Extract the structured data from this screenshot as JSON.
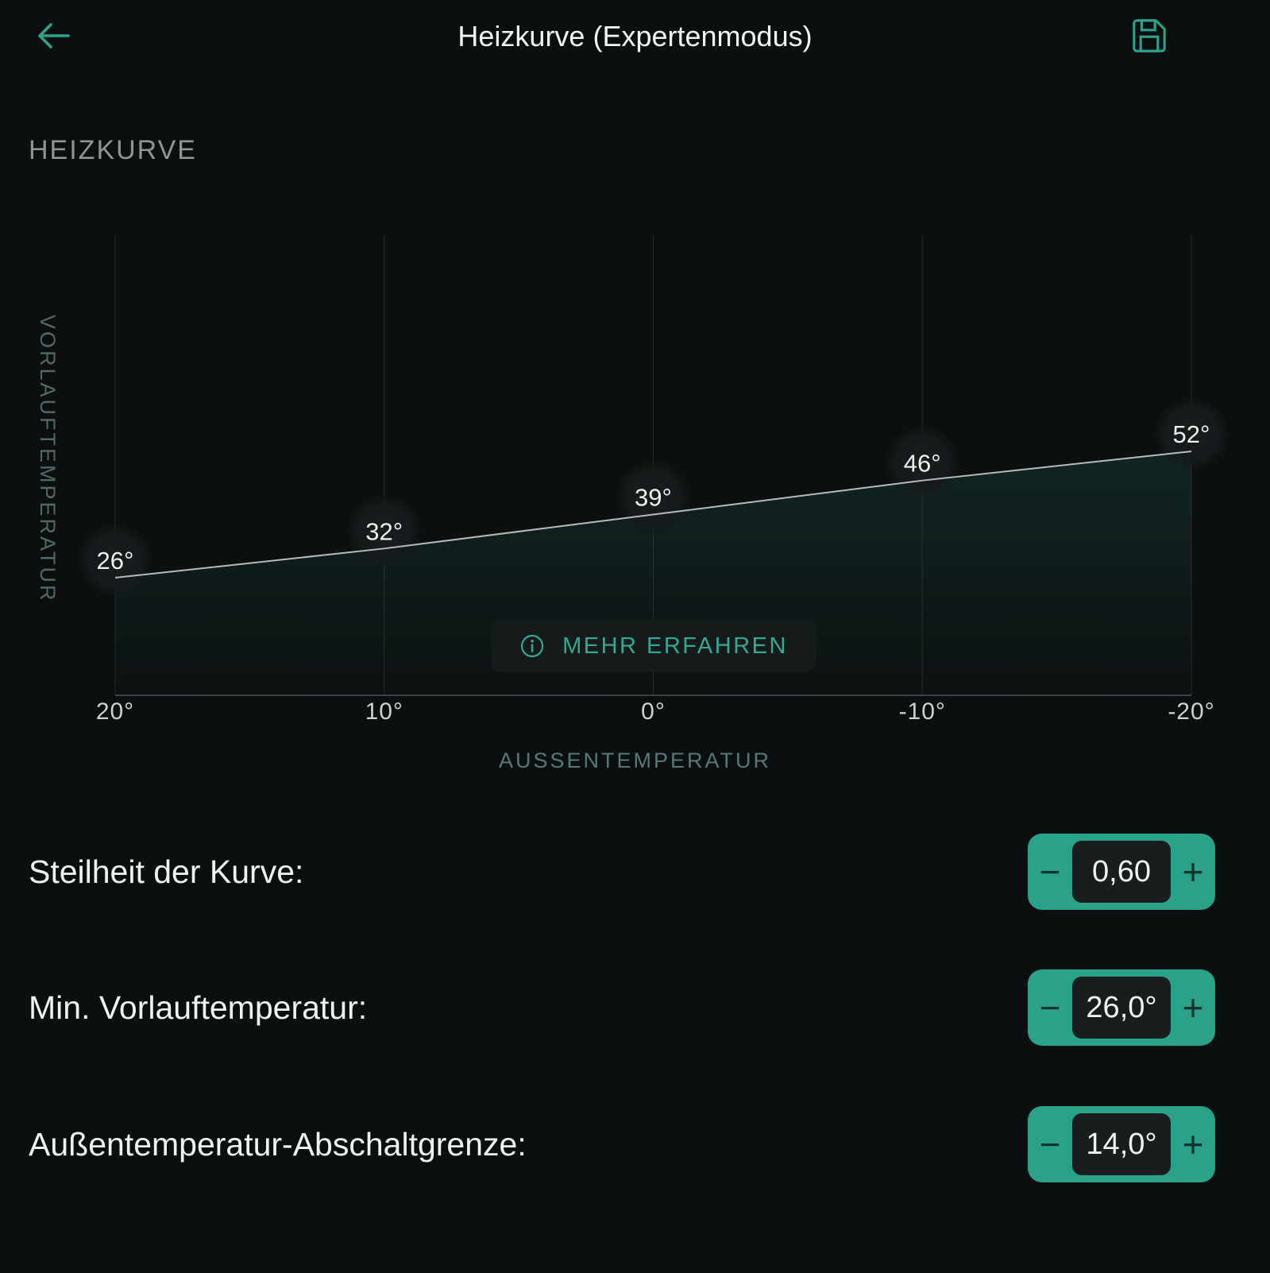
{
  "header": {
    "title": "Heizkurve (Expertenmodus)"
  },
  "section": {
    "title": "HEIZKURVE"
  },
  "chart_data": {
    "type": "line",
    "title": "HEIZKURVE",
    "xlabel": "AUSSENTEMPERATUR",
    "ylabel": "VORLAUFTEMPERATUR",
    "x": [
      20,
      10,
      0,
      -10,
      -20
    ],
    "x_tick_labels": [
      "20°",
      "10°",
      "0°",
      "-10°",
      "-20°"
    ],
    "values": [
      26,
      32,
      39,
      46,
      52
    ],
    "point_labels": [
      "26°",
      "32°",
      "39°",
      "46°",
      "52°"
    ],
    "grid": "vertical-gridlines",
    "legend": "none",
    "x_axis_reversed": true
  },
  "chart_button": {
    "label": "MEHR ERFAHREN",
    "icon": "info-icon"
  },
  "stepper": {
    "minus": "−",
    "plus": "+"
  },
  "settings": [
    {
      "label": "Steilheit der Kurve:",
      "value": "0,60"
    },
    {
      "label": "Min. Vorlauftemperatur:",
      "value": "26,0°"
    },
    {
      "label": "Außentemperatur-Abschaltgrenze:",
      "value": "14,0°"
    }
  ],
  "colors": {
    "background": "#0c0f10",
    "accent": "#2fa18a",
    "stepper_teal": "#2aa189",
    "value_box": "#191d1e",
    "text": "#f0f2f2",
    "muted_label": "#8d9695",
    "axis_label": "#567a73",
    "gridline": "#242a2b",
    "line": "#c6cdcd"
  }
}
